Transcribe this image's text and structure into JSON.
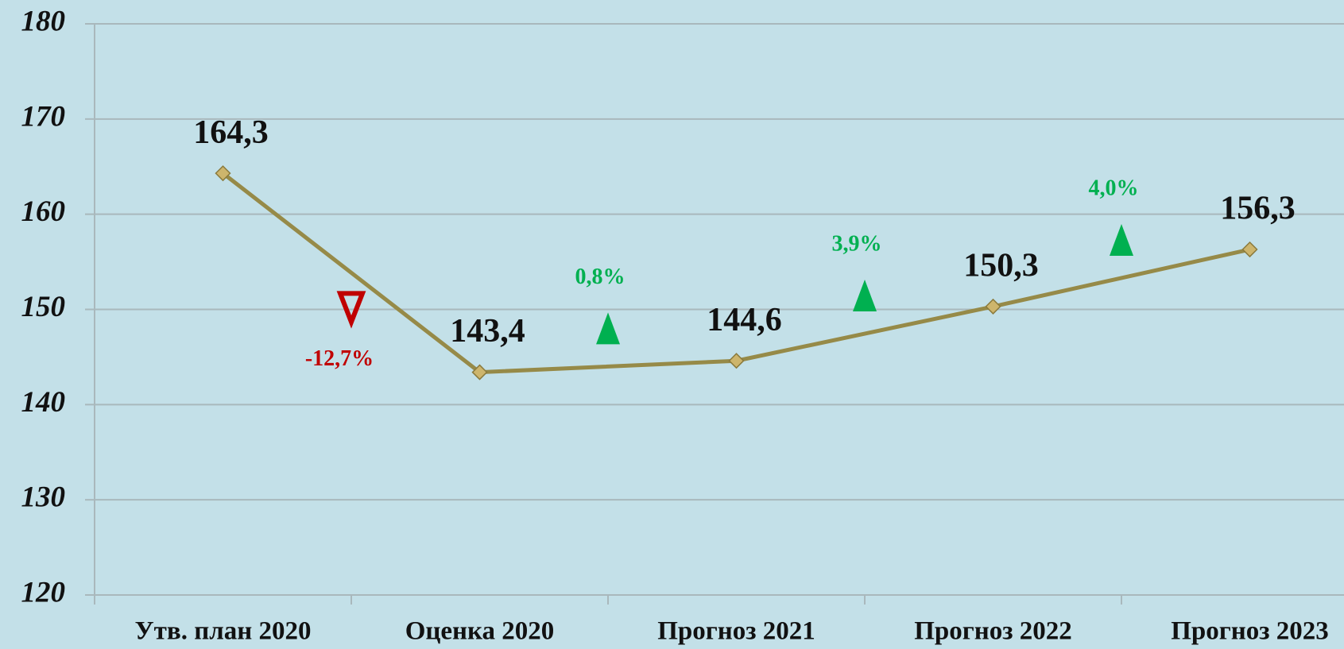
{
  "chart_data": {
    "type": "line",
    "categories": [
      "Утв. план 2020",
      "Оценка 2020",
      "Прогноз 2021",
      "Прогноз 2022",
      "Прогноз 2023"
    ],
    "series": [
      {
        "color": "#968a48",
        "marker_color": "#cdb56c",
        "values": [
          164.3,
          143.4,
          144.6,
          150.3,
          156.3
        ],
        "value_labels": [
          "164,3",
          "143,4",
          "144,6",
          "150,3",
          "156,3"
        ]
      }
    ],
    "ylim": [
      120,
      180
    ],
    "yticks": [
      120,
      130,
      140,
      150,
      160,
      170,
      180
    ],
    "grid": true,
    "annotations": [
      {
        "text": "-12,7%",
        "direction": "down",
        "color": "#c00000"
      },
      {
        "text": "0,8%",
        "direction": "up",
        "color": "#00b050"
      },
      {
        "text": "3,9%",
        "direction": "up",
        "color": "#00b050"
      },
      {
        "text": "4,0%",
        "direction": "up",
        "color": "#00b050"
      }
    ]
  }
}
